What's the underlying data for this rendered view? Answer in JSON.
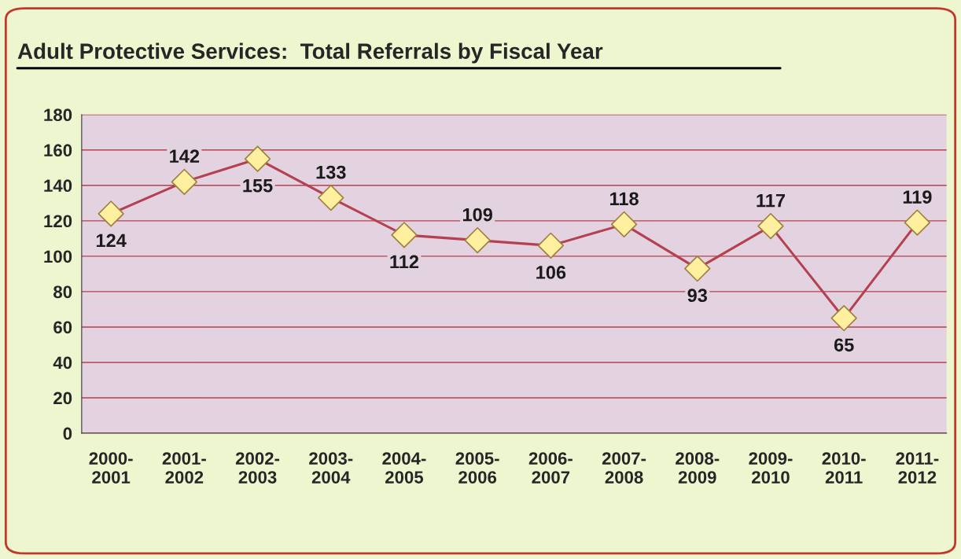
{
  "chart_data": {
    "type": "line",
    "title": "Adult Protective Services:  Total Referrals by Fiscal Year",
    "categories": [
      "2000-\n2001",
      "2001-\n2002",
      "2002-\n2003",
      "2003-\n2004",
      "2004-\n2005",
      "2005-\n2006",
      "2006-\n2007",
      "2007-\n2008",
      "2008-\n2009",
      "2009-\n2010",
      "2010-\n2011",
      "2011-\n2012"
    ],
    "series": [
      {
        "color": "#b5404f",
        "values": [
          124,
          142,
          155,
          133,
          112,
          109,
          106,
          118,
          93,
          117,
          65,
          119
        ]
      }
    ],
    "ylim": [
      0,
      180
    ],
    "yticks": [
      0,
      20,
      40,
      60,
      80,
      100,
      120,
      140,
      160,
      180
    ],
    "grid": "y",
    "marker": "diamond",
    "line_style": "solid",
    "data_labels": true
  }
}
